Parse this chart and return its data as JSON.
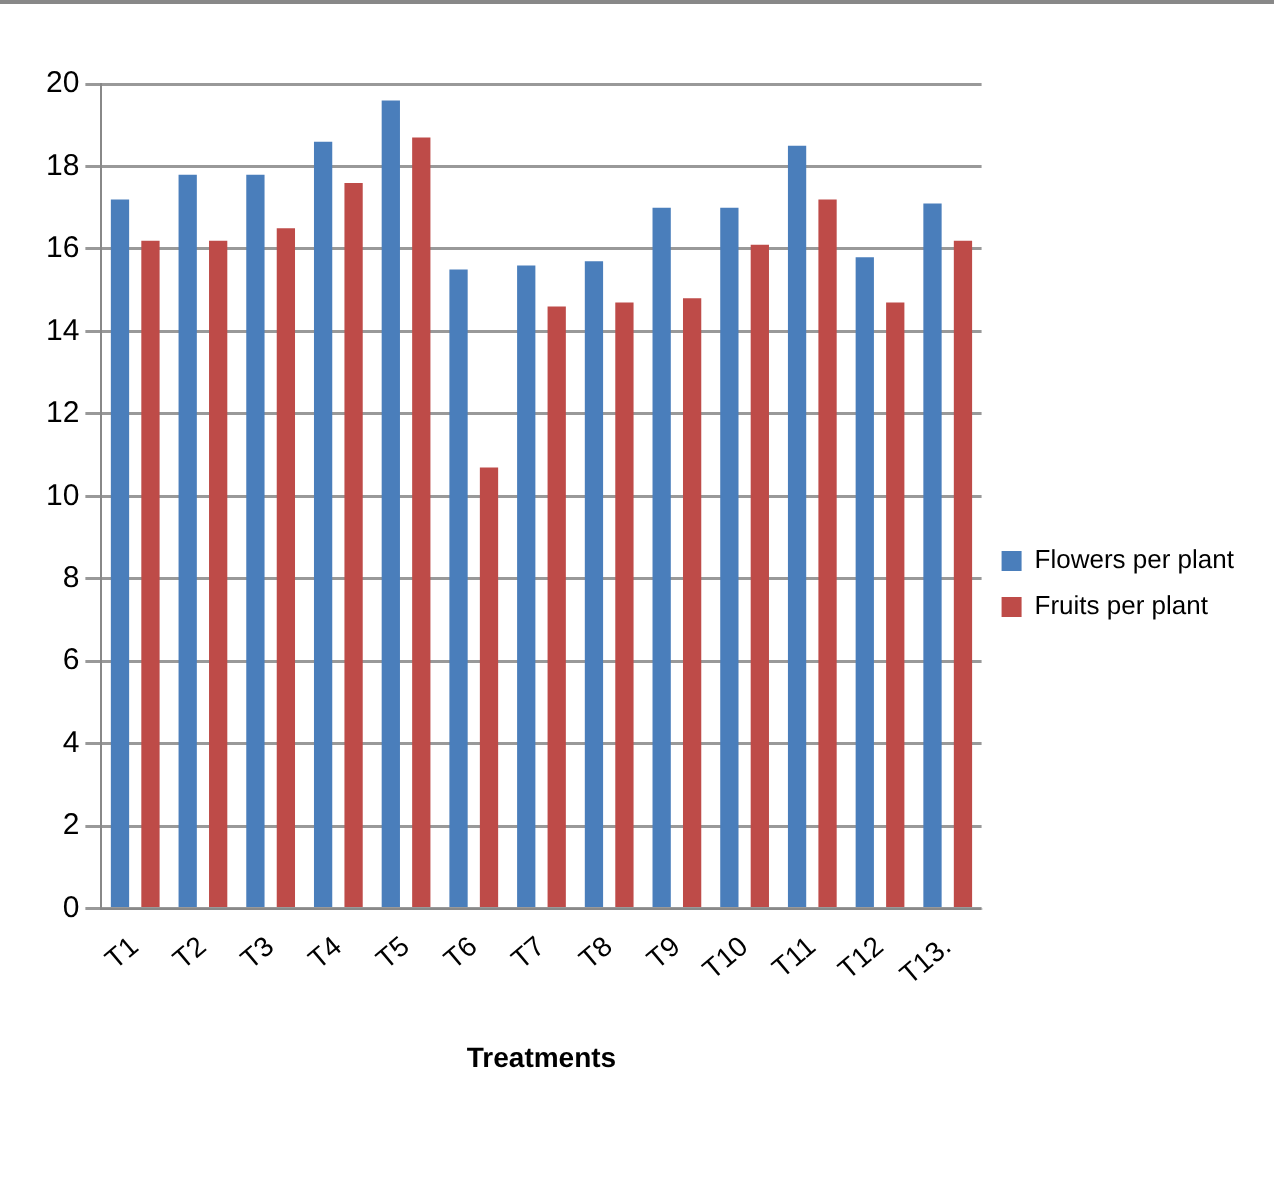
{
  "chart_data": {
    "type": "bar",
    "xlabel": "Treatments",
    "categories": [
      "T1",
      "T2",
      "T3",
      "T4",
      "T5",
      "T6",
      "T7",
      "T8",
      "T9",
      "T10",
      "T11",
      "T12",
      "T13."
    ],
    "series": [
      {
        "name": "Flowers per plant",
        "color": "#4a7ebb",
        "values": [
          17.2,
          17.8,
          17.8,
          18.6,
          19.6,
          15.5,
          15.6,
          15.7,
          17.0,
          17.0,
          18.5,
          15.8,
          17.1
        ]
      },
      {
        "name": "Fruits per plant",
        "color": "#be4b48",
        "values": [
          16.2,
          16.2,
          16.5,
          17.6,
          18.7,
          10.7,
          14.6,
          14.7,
          14.8,
          16.1,
          17.2,
          14.7,
          16.2
        ]
      }
    ],
    "ylim": [
      0,
      20
    ],
    "yticks": [
      0,
      2,
      4,
      6,
      8,
      10,
      12,
      14,
      16,
      18,
      20
    ],
    "grid": "y",
    "legend": "right"
  }
}
